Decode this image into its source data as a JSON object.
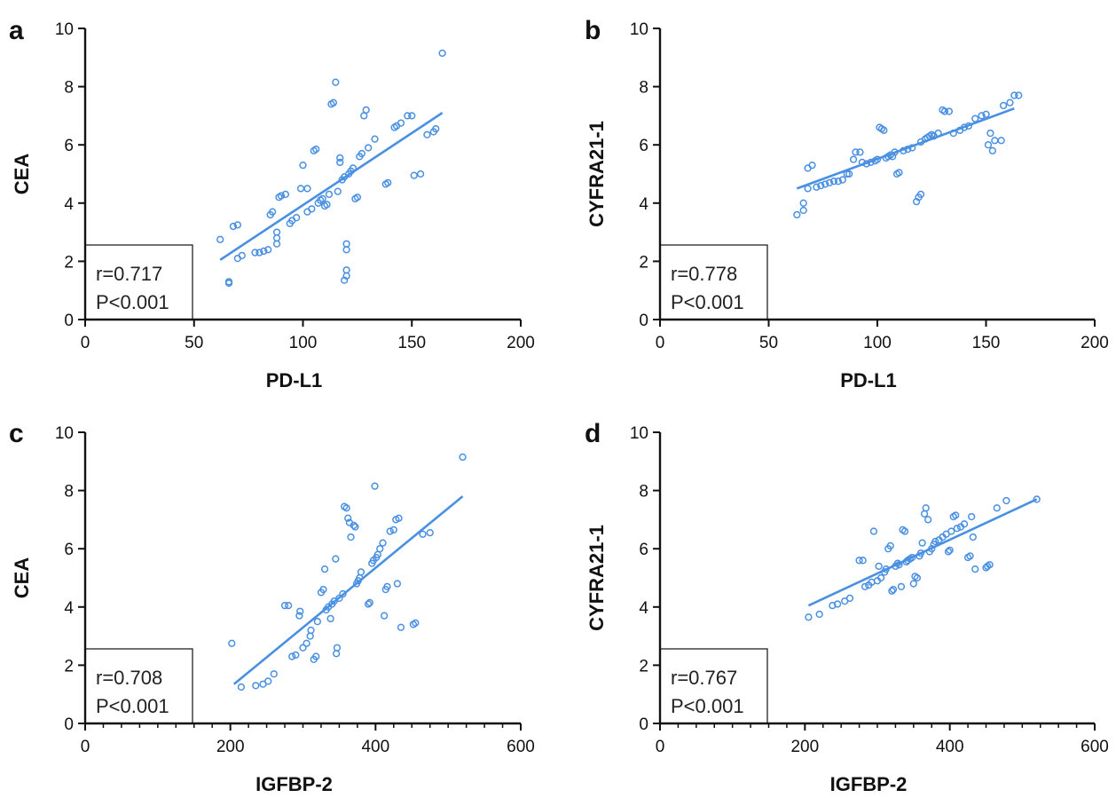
{
  "colors": {
    "points": "#4a90e2",
    "fit_line": "#4a90e2",
    "axes": "#111111"
  },
  "chart_data": [
    {
      "type": "scatter",
      "panel_label": "a",
      "xlabel": "PD-L1",
      "ylabel": "CEA",
      "xlim": [
        0,
        200
      ],
      "ylim": [
        0,
        10
      ],
      "xticks": [
        0,
        50,
        100,
        150,
        200
      ],
      "yticks": [
        0,
        2,
        4,
        6,
        8,
        10
      ],
      "minor_xticks": [],
      "stat_lines": [
        "r=0.717",
        "P<0.001"
      ],
      "grid": false,
      "fit_line": [
        [
          62,
          2.05
        ],
        [
          164,
          7.1
        ]
      ],
      "points": [
        [
          62,
          2.75
        ],
        [
          66,
          1.25
        ],
        [
          66,
          1.3
        ],
        [
          68,
          3.2
        ],
        [
          70,
          3.25
        ],
        [
          70,
          2.1
        ],
        [
          72,
          2.2
        ],
        [
          78,
          2.3
        ],
        [
          80,
          2.3
        ],
        [
          82,
          2.35
        ],
        [
          84,
          2.4
        ],
        [
          85,
          3.6
        ],
        [
          86,
          3.7
        ],
        [
          88,
          2.6
        ],
        [
          88,
          2.8
        ],
        [
          88,
          3.0
        ],
        [
          89,
          4.2
        ],
        [
          90,
          4.25
        ],
        [
          92,
          4.3
        ],
        [
          94,
          3.3
        ],
        [
          95,
          3.4
        ],
        [
          97,
          3.5
        ],
        [
          99,
          4.5
        ],
        [
          100,
          5.3
        ],
        [
          102,
          3.7
        ],
        [
          102,
          4.5
        ],
        [
          104,
          3.8
        ],
        [
          105,
          5.8
        ],
        [
          106,
          5.85
        ],
        [
          107,
          4.0
        ],
        [
          108,
          4.1
        ],
        [
          109,
          4.15
        ],
        [
          110,
          3.9
        ],
        [
          111,
          3.95
        ],
        [
          112,
          4.3
        ],
        [
          113,
          7.4
        ],
        [
          114,
          7.45
        ],
        [
          115,
          8.15
        ],
        [
          116,
          4.4
        ],
        [
          117,
          5.4
        ],
        [
          117,
          5.55
        ],
        [
          118,
          4.8
        ],
        [
          119,
          4.9
        ],
        [
          119,
          1.35
        ],
        [
          120,
          1.5
        ],
        [
          120,
          1.7
        ],
        [
          120,
          2.4
        ],
        [
          120,
          2.6
        ],
        [
          121,
          5.0
        ],
        [
          122,
          5.1
        ],
        [
          123,
          5.2
        ],
        [
          124,
          4.15
        ],
        [
          125,
          4.2
        ],
        [
          126,
          5.6
        ],
        [
          127,
          5.7
        ],
        [
          128,
          7.0
        ],
        [
          129,
          7.2
        ],
        [
          130,
          5.9
        ],
        [
          133,
          6.2
        ],
        [
          138,
          4.65
        ],
        [
          139,
          4.7
        ],
        [
          142,
          6.6
        ],
        [
          143,
          6.65
        ],
        [
          145,
          6.75
        ],
        [
          148,
          7.0
        ],
        [
          150,
          7.0
        ],
        [
          151,
          4.95
        ],
        [
          154,
          5.0
        ],
        [
          157,
          6.35
        ],
        [
          160,
          6.45
        ],
        [
          161,
          6.55
        ],
        [
          164,
          9.15
        ]
      ]
    },
    {
      "type": "scatter",
      "panel_label": "b",
      "xlabel": "PD-L1",
      "ylabel": "CYFRA21-1",
      "xlim": [
        0,
        200
      ],
      "ylim": [
        0,
        10
      ],
      "xticks": [
        0,
        50,
        100,
        150,
        200
      ],
      "yticks": [
        0,
        2,
        4,
        6,
        8,
        10
      ],
      "minor_xticks": [],
      "stat_lines": [
        "r=0.778",
        "P<0.001"
      ],
      "grid": false,
      "fit_line": [
        [
          63,
          4.5
        ],
        [
          163,
          7.25
        ]
      ],
      "points": [
        [
          63,
          3.6
        ],
        [
          66,
          3.75
        ],
        [
          66,
          4.0
        ],
        [
          68,
          4.5
        ],
        [
          68,
          5.2
        ],
        [
          70,
          5.3
        ],
        [
          72,
          4.55
        ],
        [
          74,
          4.6
        ],
        [
          76,
          4.65
        ],
        [
          78,
          4.7
        ],
        [
          80,
          4.75
        ],
        [
          82,
          4.75
        ],
        [
          84,
          4.8
        ],
        [
          86,
          5.0
        ],
        [
          87,
          5.0
        ],
        [
          89,
          5.5
        ],
        [
          90,
          5.75
        ],
        [
          92,
          5.75
        ],
        [
          93,
          5.4
        ],
        [
          95,
          5.35
        ],
        [
          97,
          5.4
        ],
        [
          99,
          5.45
        ],
        [
          100,
          5.5
        ],
        [
          101,
          6.6
        ],
        [
          102,
          6.55
        ],
        [
          103,
          6.5
        ],
        [
          104,
          5.55
        ],
        [
          105,
          5.6
        ],
        [
          106,
          5.65
        ],
        [
          107,
          5.6
        ],
        [
          108,
          5.75
        ],
        [
          109,
          5.0
        ],
        [
          110,
          5.05
        ],
        [
          112,
          5.8
        ],
        [
          114,
          5.85
        ],
        [
          116,
          5.9
        ],
        [
          118,
          4.05
        ],
        [
          119,
          4.2
        ],
        [
          120,
          4.3
        ],
        [
          120,
          6.1
        ],
        [
          122,
          6.2
        ],
        [
          123,
          6.25
        ],
        [
          124,
          6.3
        ],
        [
          125,
          6.35
        ],
        [
          126,
          6.3
        ],
        [
          128,
          6.4
        ],
        [
          130,
          7.2
        ],
        [
          131,
          7.15
        ],
        [
          133,
          7.15
        ],
        [
          135,
          6.4
        ],
        [
          138,
          6.5
        ],
        [
          140,
          6.6
        ],
        [
          142,
          6.65
        ],
        [
          145,
          6.9
        ],
        [
          148,
          7.0
        ],
        [
          150,
          7.05
        ],
        [
          151,
          6.0
        ],
        [
          152,
          6.4
        ],
        [
          153,
          5.8
        ],
        [
          154,
          6.15
        ],
        [
          157,
          6.15
        ],
        [
          158,
          7.35
        ],
        [
          161,
          7.45
        ],
        [
          163,
          7.7
        ],
        [
          165,
          7.7
        ]
      ]
    },
    {
      "type": "scatter",
      "panel_label": "c",
      "xlabel": "IGFBP-2",
      "ylabel": "CEA",
      "xlim": [
        0,
        600
      ],
      "ylim": [
        0,
        10
      ],
      "xticks": [
        0,
        200,
        400,
        600
      ],
      "yticks": [
        0,
        2,
        4,
        6,
        8,
        10
      ],
      "minor_xticks": [
        25,
        50,
        75,
        100,
        125,
        150,
        175,
        225,
        250,
        275,
        300,
        325,
        350,
        375,
        425,
        450,
        475,
        500,
        525,
        550,
        575
      ],
      "stat_lines": [
        "r=0.708",
        "P<0.001"
      ],
      "grid": false,
      "fit_line": [
        [
          205,
          1.35
        ],
        [
          520,
          7.8
        ]
      ],
      "points": [
        [
          202,
          2.75
        ],
        [
          215,
          1.25
        ],
        [
          235,
          1.3
        ],
        [
          245,
          1.35
        ],
        [
          252,
          1.45
        ],
        [
          260,
          1.7
        ],
        [
          275,
          4.05
        ],
        [
          280,
          4.05
        ],
        [
          285,
          2.3
        ],
        [
          290,
          2.35
        ],
        [
          295,
          3.7
        ],
        [
          296,
          3.85
        ],
        [
          300,
          2.6
        ],
        [
          305,
          2.75
        ],
        [
          310,
          3.0
        ],
        [
          311,
          3.2
        ],
        [
          315,
          2.2
        ],
        [
          318,
          2.3
        ],
        [
          320,
          3.5
        ],
        [
          325,
          4.5
        ],
        [
          328,
          4.6
        ],
        [
          330,
          5.3
        ],
        [
          332,
          3.9
        ],
        [
          335,
          4.0
        ],
        [
          338,
          3.6
        ],
        [
          340,
          4.1
        ],
        [
          343,
          4.2
        ],
        [
          345,
          5.65
        ],
        [
          346,
          2.4
        ],
        [
          347,
          2.6
        ],
        [
          350,
          4.3
        ],
        [
          355,
          4.45
        ],
        [
          357,
          7.45
        ],
        [
          360,
          7.4
        ],
        [
          362,
          7.05
        ],
        [
          364,
          6.9
        ],
        [
          366,
          6.4
        ],
        [
          370,
          6.8
        ],
        [
          372,
          6.75
        ],
        [
          374,
          4.8
        ],
        [
          376,
          4.9
        ],
        [
          378,
          5.0
        ],
        [
          380,
          5.2
        ],
        [
          390,
          4.1
        ],
        [
          392,
          4.15
        ],
        [
          395,
          5.5
        ],
        [
          397,
          5.6
        ],
        [
          399,
          8.15
        ],
        [
          401,
          5.7
        ],
        [
          403,
          5.8
        ],
        [
          406,
          6.0
        ],
        [
          410,
          6.2
        ],
        [
          412,
          3.7
        ],
        [
          414,
          4.6
        ],
        [
          416,
          4.7
        ],
        [
          420,
          6.6
        ],
        [
          425,
          6.65
        ],
        [
          428,
          7.0
        ],
        [
          430,
          4.8
        ],
        [
          432,
          7.05
        ],
        [
          435,
          3.3
        ],
        [
          452,
          3.4
        ],
        [
          455,
          3.45
        ],
        [
          465,
          6.5
        ],
        [
          475,
          6.55
        ],
        [
          520,
          9.15
        ]
      ]
    },
    {
      "type": "scatter",
      "panel_label": "d",
      "xlabel": "IGFBP-2",
      "ylabel": "CYFRA21-1",
      "xlim": [
        0,
        600
      ],
      "ylim": [
        0,
        10
      ],
      "xticks": [
        0,
        200,
        400,
        600
      ],
      "yticks": [
        0,
        2,
        4,
        6,
        8,
        10
      ],
      "minor_xticks": [
        25,
        50,
        75,
        100,
        125,
        150,
        175,
        225,
        250,
        275,
        300,
        325,
        350,
        375,
        425,
        450,
        475,
        500,
        525,
        550,
        575
      ],
      "stat_lines": [
        "r=0.767",
        "P<0.001"
      ],
      "grid": false,
      "fit_line": [
        [
          205,
          4.05
        ],
        [
          520,
          7.7
        ]
      ],
      "points": [
        [
          205,
          3.65
        ],
        [
          220,
          3.75
        ],
        [
          238,
          4.05
        ],
        [
          245,
          4.1
        ],
        [
          255,
          4.2
        ],
        [
          262,
          4.3
        ],
        [
          275,
          5.6
        ],
        [
          280,
          5.6
        ],
        [
          283,
          4.7
        ],
        [
          288,
          4.75
        ],
        [
          292,
          4.85
        ],
        [
          295,
          6.6
        ],
        [
          300,
          4.9
        ],
        [
          302,
          5.4
        ],
        [
          305,
          5.0
        ],
        [
          310,
          5.2
        ],
        [
          312,
          5.3
        ],
        [
          315,
          6.0
        ],
        [
          318,
          6.1
        ],
        [
          320,
          4.55
        ],
        [
          322,
          4.6
        ],
        [
          325,
          5.4
        ],
        [
          328,
          5.5
        ],
        [
          330,
          5.45
        ],
        [
          333,
          4.7
        ],
        [
          335,
          6.65
        ],
        [
          338,
          6.6
        ],
        [
          340,
          5.55
        ],
        [
          342,
          5.6
        ],
        [
          345,
          5.65
        ],
        [
          348,
          5.7
        ],
        [
          350,
          4.8
        ],
        [
          352,
          5.05
        ],
        [
          355,
          5.0
        ],
        [
          358,
          5.75
        ],
        [
          360,
          5.85
        ],
        [
          362,
          6.2
        ],
        [
          365,
          7.2
        ],
        [
          367,
          7.4
        ],
        [
          370,
          7.0
        ],
        [
          372,
          5.9
        ],
        [
          375,
          6.0
        ],
        [
          378,
          6.15
        ],
        [
          380,
          6.25
        ],
        [
          385,
          6.3
        ],
        [
          390,
          6.4
        ],
        [
          395,
          6.5
        ],
        [
          398,
          5.9
        ],
        [
          400,
          5.95
        ],
        [
          402,
          6.6
        ],
        [
          405,
          7.1
        ],
        [
          408,
          7.15
        ],
        [
          410,
          6.7
        ],
        [
          415,
          6.75
        ],
        [
          420,
          6.85
        ],
        [
          425,
          5.7
        ],
        [
          428,
          5.75
        ],
        [
          430,
          7.1
        ],
        [
          432,
          6.4
        ],
        [
          435,
          5.3
        ],
        [
          450,
          5.35
        ],
        [
          452,
          5.4
        ],
        [
          455,
          5.45
        ],
        [
          465,
          7.4
        ],
        [
          478,
          7.65
        ],
        [
          520,
          7.7
        ]
      ]
    }
  ]
}
